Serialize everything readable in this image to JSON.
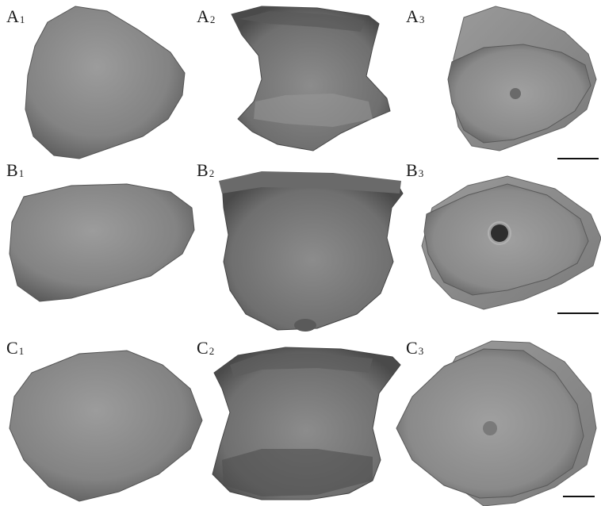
{
  "figure": {
    "panel_labels": [
      {
        "id": "A1",
        "letter": "A",
        "sub": "1"
      },
      {
        "id": "A2",
        "letter": "A",
        "sub": "2"
      },
      {
        "id": "A3",
        "letter": "A",
        "sub": "3"
      },
      {
        "id": "B1",
        "letter": "B",
        "sub": "1"
      },
      {
        "id": "B2",
        "letter": "B",
        "sub": "2"
      },
      {
        "id": "B3",
        "letter": "B",
        "sub": "3"
      },
      {
        "id": "C1",
        "letter": "C",
        "sub": "1"
      },
      {
        "id": "C2",
        "letter": "C",
        "sub": "2"
      },
      {
        "id": "C3",
        "letter": "C",
        "sub": "3"
      }
    ],
    "colors": {
      "background": "#ffffff",
      "specimen_fill": "#8a8a8a",
      "specimen_dark": "#5e5e5e",
      "specimen_light": "#a8a8a8",
      "scale_bar": "#111111"
    },
    "scale_bars": 3
  }
}
